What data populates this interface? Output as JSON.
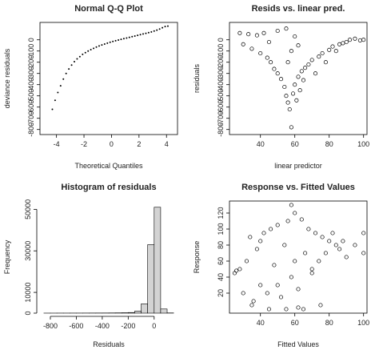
{
  "chart_data": [
    {
      "type": "scatter",
      "title": "Normal Q-Q Plot",
      "x_label": "Theoretical Quantiles",
      "y_label": "deviance residuals",
      "x": [
        -4.3,
        -4.1,
        -3.9,
        -3.7,
        -3.5,
        -3.3,
        -3.1,
        -2.9,
        -2.7,
        -2.5,
        -2.3,
        -2.1,
        -1.9,
        -1.7,
        -1.5,
        -1.3,
        -1.1,
        -0.9,
        -0.7,
        -0.5,
        -0.3,
        -0.1,
        0.1,
        0.3,
        0.5,
        0.7,
        0.9,
        1.1,
        1.3,
        1.5,
        1.7,
        1.9,
        2.1,
        2.3,
        2.5,
        2.7,
        2.9,
        3.1,
        3.3,
        3.5,
        3.7,
        3.9,
        4.1
      ],
      "values": [
        -620,
        -540,
        -470,
        -410,
        -350,
        -300,
        -260,
        -225,
        -195,
        -170,
        -150,
        -130,
        -115,
        -100,
        -88,
        -76,
        -65,
        -55,
        -46,
        -38,
        -30,
        -22,
        -15,
        -8,
        -2,
        4,
        10,
        16,
        22,
        28,
        34,
        40,
        46,
        52,
        58,
        64,
        70,
        78,
        86,
        96,
        108,
        118,
        122
      ],
      "marker": "dot",
      "color": "#000000",
      "xlim": [
        -5.2,
        4.8
      ],
      "xticks": [
        -4,
        -2,
        0,
        2,
        4
      ],
      "ylim": [
        -845,
        155
      ],
      "yticks": [
        -800,
        -700,
        -600,
        -500,
        -400,
        -300,
        -200,
        -100,
        0
      ]
    },
    {
      "type": "scatter",
      "title": "Resids vs. linear pred.",
      "x_label": "linear predictor",
      "y_label": "residuals",
      "x": [
        28,
        30,
        33,
        35,
        38,
        40,
        42,
        44,
        46,
        48,
        50,
        52,
        54,
        55,
        56,
        57,
        58,
        59,
        60,
        61,
        62,
        63,
        64,
        65,
        66,
        68,
        70,
        72,
        74,
        76,
        78,
        80,
        82,
        84,
        86,
        88,
        90,
        92,
        95,
        98,
        100,
        50,
        55,
        58,
        60,
        56,
        62,
        45
      ],
      "values": [
        60,
        -40,
        50,
        -80,
        40,
        -120,
        60,
        -160,
        -200,
        -260,
        -300,
        -350,
        -420,
        -500,
        -560,
        -620,
        -780,
        -480,
        -400,
        -540,
        -330,
        -450,
        -280,
        -360,
        -250,
        -220,
        -180,
        -300,
        -150,
        -120,
        -200,
        -90,
        -60,
        -100,
        -40,
        -30,
        -20,
        0,
        10,
        -5,
        0,
        80,
        100,
        -100,
        30,
        -200,
        -50,
        -20
      ],
      "marker": "circle",
      "color": "#000000",
      "xlim": [
        22,
        102
      ],
      "xticks": [
        40,
        60,
        80,
        100
      ],
      "ylim": [
        -845,
        155
      ],
      "yticks": [
        -800,
        -700,
        -600,
        -500,
        -400,
        -300,
        -200,
        -100,
        0
      ]
    },
    {
      "type": "histogram",
      "title": "Histogram of residuals",
      "x_label": "Residuals",
      "y_label": "Frequency",
      "bins": [
        -850,
        -800,
        -750,
        -700,
        -650,
        -600,
        -550,
        -500,
        -450,
        -400,
        -350,
        -300,
        -250,
        -200,
        -150,
        -100,
        -50,
        0,
        50,
        100,
        150
      ],
      "values": [
        20,
        20,
        30,
        30,
        40,
        40,
        50,
        60,
        70,
        80,
        100,
        130,
        180,
        300,
        1000,
        4500,
        33000,
        51000,
        2000,
        100
      ],
      "color": "#d3d3d3",
      "xlim": [
        -880,
        180
      ],
      "xticks": [
        -800,
        -600,
        -400,
        -200,
        0
      ],
      "ylim": [
        0,
        54000
      ],
      "yticks": [
        0,
        10000,
        30000,
        50000
      ]
    },
    {
      "type": "scatter",
      "title": "Response vs. Fitted Values",
      "x_label": "Fitted Values",
      "y_label": "Response",
      "x": [
        25,
        26,
        28,
        30,
        32,
        34,
        36,
        38,
        40,
        42,
        44,
        46,
        48,
        50,
        52,
        54,
        56,
        58,
        60,
        62,
        64,
        66,
        68,
        70,
        72,
        74,
        76,
        78,
        80,
        82,
        84,
        86,
        88,
        90,
        95,
        100,
        35,
        45,
        55,
        65,
        75,
        50,
        60,
        70,
        40,
        58,
        62,
        100
      ],
      "values": [
        45,
        48,
        50,
        20,
        60,
        90,
        10,
        75,
        30,
        95,
        20,
        100,
        55,
        105,
        15,
        80,
        110,
        40,
        120,
        25,
        112,
        70,
        100,
        50,
        95,
        60,
        90,
        70,
        85,
        95,
        80,
        75,
        85,
        65,
        80,
        70,
        5,
        0,
        0,
        0,
        5,
        30,
        60,
        45,
        85,
        130,
        2,
        95
      ],
      "marker": "circle",
      "color": "#000000",
      "xlim": [
        22,
        102
      ],
      "xticks": [
        40,
        60,
        80,
        100
      ],
      "ylim": [
        -5,
        135
      ],
      "yticks": [
        20,
        40,
        60,
        80,
        100,
        120
      ]
    }
  ]
}
